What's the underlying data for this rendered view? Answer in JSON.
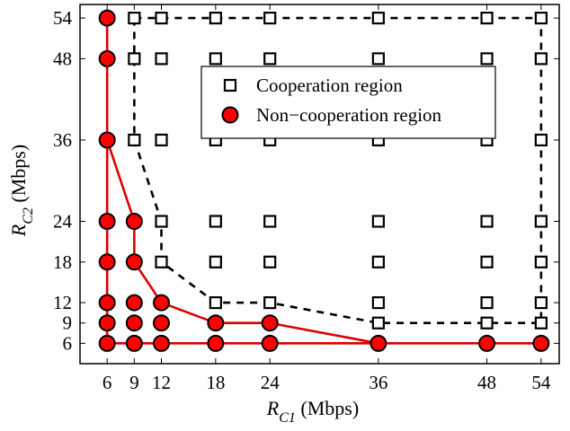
{
  "chart_data": {
    "type": "scatter",
    "xlabel": {
      "prefix": "R",
      "sub": "C1",
      "suffix": " (Mbps)"
    },
    "ylabel": {
      "prefix": "R",
      "sub": "C2",
      "suffix": " (Mbps)"
    },
    "xticks": [
      6,
      9,
      12,
      18,
      24,
      36,
      48,
      54
    ],
    "yticks": [
      6,
      9,
      12,
      18,
      24,
      36,
      48,
      54
    ],
    "xlim": [
      3,
      56
    ],
    "ylim": [
      3,
      56
    ],
    "grid": false,
    "legend_position": "top-right",
    "series": [
      {
        "name": "Cooperation region",
        "marker": "square-open",
        "color": "#000000",
        "points": [
          [
            9,
            54
          ],
          [
            12,
            54
          ],
          [
            18,
            54
          ],
          [
            24,
            54
          ],
          [
            36,
            54
          ],
          [
            48,
            54
          ],
          [
            54,
            54
          ],
          [
            9,
            48
          ],
          [
            12,
            48
          ],
          [
            18,
            48
          ],
          [
            24,
            48
          ],
          [
            36,
            48
          ],
          [
            48,
            48
          ],
          [
            54,
            48
          ],
          [
            9,
            36
          ],
          [
            12,
            36
          ],
          [
            18,
            36
          ],
          [
            24,
            36
          ],
          [
            36,
            36
          ],
          [
            48,
            36
          ],
          [
            54,
            36
          ],
          [
            12,
            24
          ],
          [
            18,
            24
          ],
          [
            24,
            24
          ],
          [
            36,
            24
          ],
          [
            48,
            24
          ],
          [
            54,
            24
          ],
          [
            12,
            18
          ],
          [
            18,
            18
          ],
          [
            24,
            18
          ],
          [
            36,
            18
          ],
          [
            48,
            18
          ],
          [
            54,
            18
          ],
          [
            18,
            12
          ],
          [
            24,
            12
          ],
          [
            36,
            12
          ],
          [
            48,
            12
          ],
          [
            54,
            12
          ],
          [
            36,
            9
          ],
          [
            48,
            9
          ],
          [
            54,
            9
          ]
        ],
        "boundary": {
          "style": "dashed",
          "color": "#000000",
          "path": [
            [
              9,
              54
            ],
            [
              54,
              54
            ],
            [
              54,
              9
            ],
            [
              36,
              9
            ],
            [
              24,
              12
            ],
            [
              18,
              12
            ],
            [
              12,
              18
            ],
            [
              12,
              24
            ],
            [
              9,
              36
            ],
            [
              9,
              54
            ]
          ]
        }
      },
      {
        "name": "Non−cooperation region",
        "marker": "circle-filled",
        "color": "#ff0000",
        "edge_color": "#000000",
        "points": [
          [
            6,
            54
          ],
          [
            6,
            48
          ],
          [
            6,
            36
          ],
          [
            6,
            24
          ],
          [
            9,
            24
          ],
          [
            6,
            18
          ],
          [
            9,
            18
          ],
          [
            6,
            12
          ],
          [
            9,
            12
          ],
          [
            12,
            12
          ],
          [
            6,
            9
          ],
          [
            9,
            9
          ],
          [
            12,
            9
          ],
          [
            18,
            9
          ],
          [
            24,
            9
          ],
          [
            6,
            6
          ],
          [
            9,
            6
          ],
          [
            12,
            6
          ],
          [
            18,
            6
          ],
          [
            24,
            6
          ],
          [
            36,
            6
          ],
          [
            48,
            6
          ],
          [
            54,
            6
          ]
        ],
        "boundary": {
          "style": "solid",
          "color": "#dd0000",
          "path": [
            [
              6,
              54
            ],
            [
              6,
              36
            ],
            [
              9,
              24
            ],
            [
              9,
              18
            ],
            [
              12,
              12
            ],
            [
              18,
              9
            ],
            [
              24,
              9
            ],
            [
              36,
              6
            ],
            [
              54,
              6
            ],
            [
              6,
              6
            ],
            [
              6,
              54
            ]
          ]
        }
      }
    ]
  }
}
